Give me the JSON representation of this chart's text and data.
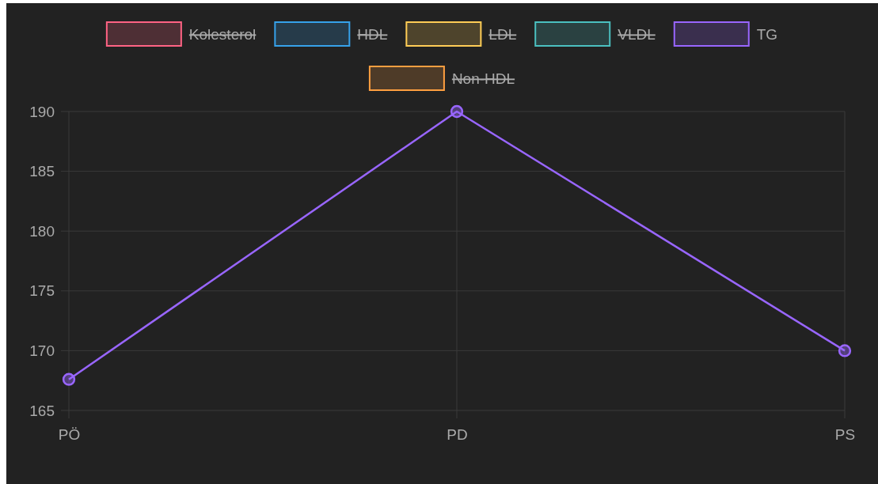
{
  "chart_data": {
    "type": "line",
    "categories": [
      "PÖ",
      "PD",
      "PS"
    ],
    "series": [
      {
        "name": "Kolesterol",
        "color": "#ff6384",
        "values": [
          null,
          null,
          null
        ]
      },
      {
        "name": "HDL",
        "color": "#36a2eb",
        "values": [
          null,
          null,
          null
        ]
      },
      {
        "name": "LDL",
        "color": "#ffcd56",
        "values": [
          null,
          null,
          null
        ]
      },
      {
        "name": "VLDL",
        "color": "#4bc0c0",
        "values": [
          null,
          null,
          null
        ]
      },
      {
        "name": "TG",
        "color": "#9966ff",
        "values": [
          167.6,
          190,
          170
        ]
      },
      {
        "name": "Non-HDL",
        "color": "#ff9f40",
        "values": [
          null,
          null,
          null
        ]
      }
    ],
    "ylim": [
      165,
      190
    ],
    "yticks": [
      165,
      170,
      175,
      180,
      185,
      190
    ],
    "grid": true,
    "legend": "top",
    "marker": "circle"
  }
}
